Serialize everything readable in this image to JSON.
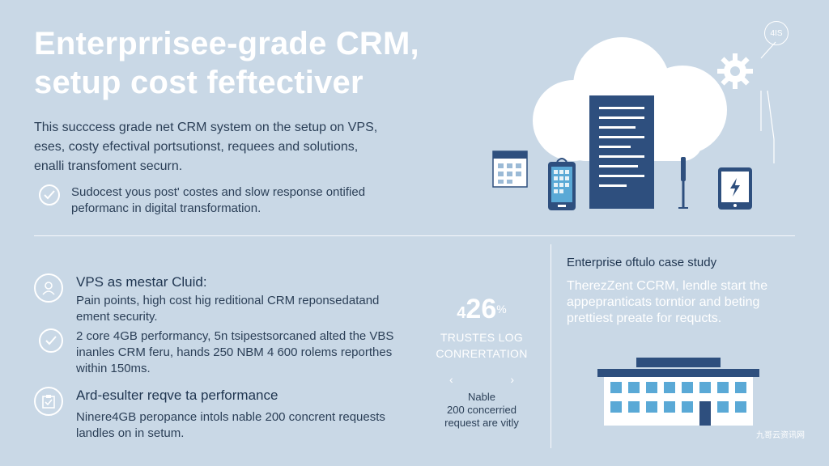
{
  "headline": {
    "line1": "Enterprrisee-grade CRM,",
    "line2": "setup cost feftectiver"
  },
  "intro": {
    "line1": "This succcess grade net CRM system on the setup on VPS,",
    "line2": "eses, costy efectival portsutionst, requees and solutions,",
    "line3": "enalli transfoment securn."
  },
  "check_item": {
    "line1": "Sudocest yous post' costes and slow response ontified",
    "line2": "peformanc in digital transformation."
  },
  "section1": {
    "title": "VPS as mestar Cluid:",
    "pain": {
      "line1": "Pain points, high cost hig reditional CRM reponsedatand",
      "line2": "ement security."
    },
    "spec": {
      "line1": "2 core 4GB performancy, 5n tsipestsorcaned alted the VBS",
      "line2": "inanles CRM feru, hands 250 NBM 4 600 rolems reporthes",
      "line3": "within 150ms."
    }
  },
  "section2": {
    "title": "Ard-esulter reqve ta performance",
    "line1": "Ninere4GB peropance intols nable 200 concrent requests",
    "line2": "landles on in setum."
  },
  "stat": {
    "value": "26",
    "prefix": "4",
    "suffix": "%",
    "label1": "TRUSTES LOG",
    "label2": "CONRERTATION",
    "prev": "‹",
    "next": "›",
    "small1": "Nable",
    "small2": "200 concerried",
    "small3": "request are vitly"
  },
  "case_study": {
    "title": "Enterprise oftulo case study",
    "line1": "TherezZent CCRM, lendle start the",
    "line2": "appepranticats torntior and beting",
    "line3": "prettiest preate for requcts."
  },
  "badge": {
    "text": "4IS"
  },
  "watermark": "九哥云资讯网",
  "colors": {
    "background": "#c9d8e6",
    "navy": "#2e4f7e",
    "white": "#ffffff",
    "accent_blue": "#5aa9d6",
    "text": "#2b3f57"
  }
}
